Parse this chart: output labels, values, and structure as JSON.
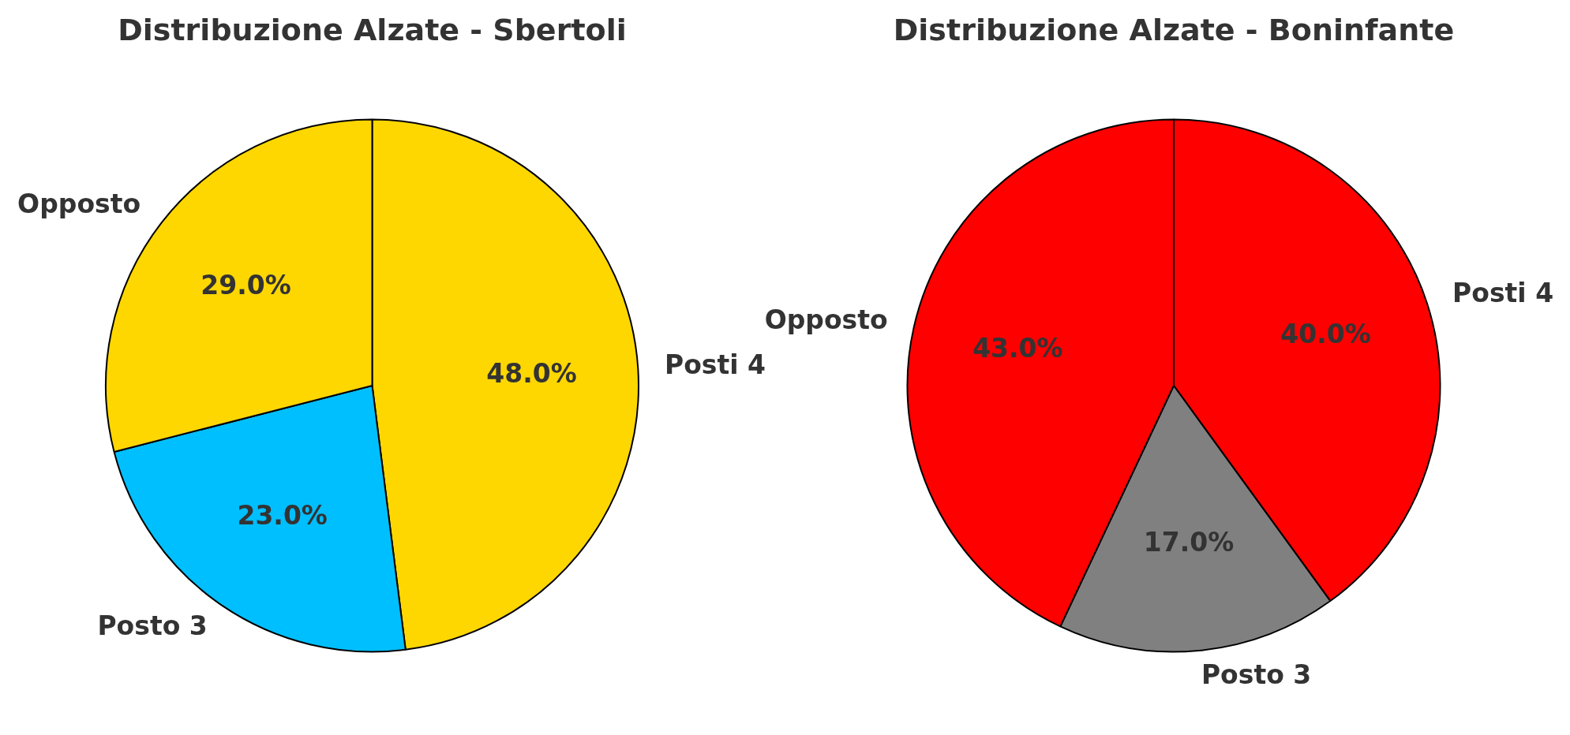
{
  "chart_data": [
    {
      "type": "pie",
      "title": "Distribuzione Alzate - Sbertoli",
      "categories": [
        "Posti 4",
        "Posto 3",
        "Opposto"
      ],
      "values": [
        48,
        23,
        29
      ],
      "colors": [
        "#ffd700",
        "#00bfff",
        "#ffd700"
      ],
      "value_labels": [
        "48.0%",
        "23.0%",
        "29.0%"
      ]
    },
    {
      "type": "pie",
      "title": "Distribuzione Alzate - Boninfante",
      "categories": [
        "Posti 4",
        "Posto 3",
        "Opposto"
      ],
      "values": [
        40,
        17,
        43
      ],
      "colors": [
        "#ff0000",
        "#808080",
        "#ff0000"
      ],
      "value_labels": [
        "40.0%",
        "17.0%",
        "43.0%"
      ]
    }
  ]
}
